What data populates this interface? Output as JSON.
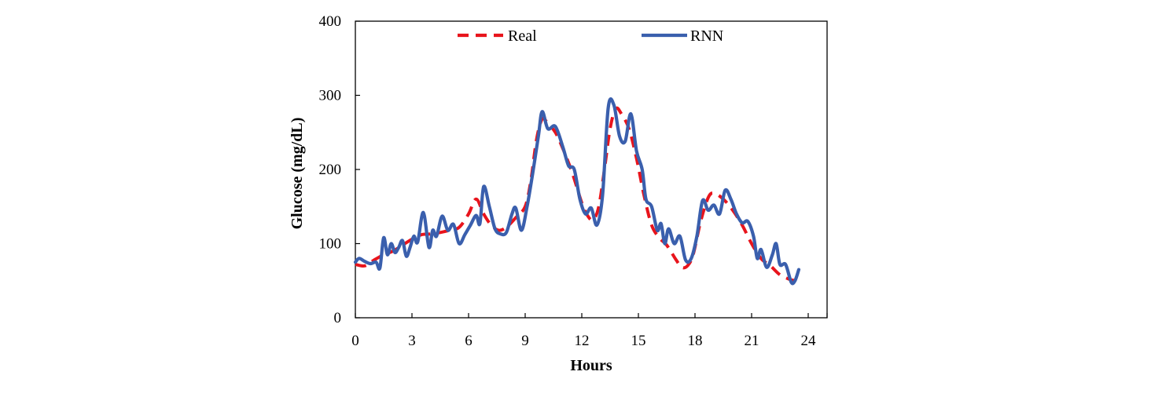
{
  "chart_data": {
    "type": "line",
    "title": "",
    "xlabel": "Hours",
    "ylabel": "Glucose (mg/dL)",
    "xlim": [
      0,
      25
    ],
    "ylim": [
      0,
      400
    ],
    "x_ticks": [
      0,
      3,
      6,
      9,
      12,
      15,
      18,
      21,
      24
    ],
    "y_ticks": [
      0,
      100,
      200,
      300,
      400
    ],
    "grid": false,
    "legend": "top, horizontal",
    "series": [
      {
        "name": "Real",
        "color": "#e8141c",
        "style": "dashed",
        "points": [
          [
            0,
            72
          ],
          [
            0.5,
            70
          ],
          [
            1,
            78
          ],
          [
            1.5,
            85
          ],
          [
            2,
            90
          ],
          [
            2.5,
            98
          ],
          [
            3,
            106
          ],
          [
            3.5,
            112
          ],
          [
            4,
            113
          ],
          [
            4.5,
            115
          ],
          [
            5,
            118
          ],
          [
            5.5,
            122
          ],
          [
            6,
            140
          ],
          [
            6.4,
            160
          ],
          [
            6.8,
            140
          ],
          [
            7.2,
            125
          ],
          [
            7.6,
            118
          ],
          [
            8,
            122
          ],
          [
            8.5,
            135
          ],
          [
            9,
            150
          ],
          [
            9.3,
            185
          ],
          [
            9.6,
            240
          ],
          [
            9.9,
            268
          ],
          [
            10.2,
            262
          ],
          [
            10.6,
            250
          ],
          [
            11,
            228
          ],
          [
            11.5,
            195
          ],
          [
            12,
            155
          ],
          [
            12.3,
            138
          ],
          [
            12.6,
            132
          ],
          [
            12.9,
            150
          ],
          [
            13.2,
            200
          ],
          [
            13.5,
            255
          ],
          [
            13.8,
            282
          ],
          [
            14.1,
            275
          ],
          [
            14.5,
            255
          ],
          [
            14.9,
            215
          ],
          [
            15.3,
            165
          ],
          [
            15.7,
            125
          ],
          [
            16.1,
            108
          ],
          [
            16.5,
            98
          ],
          [
            17,
            78
          ],
          [
            17.3,
            68
          ],
          [
            17.6,
            70
          ],
          [
            17.9,
            85
          ],
          [
            18.3,
            130
          ],
          [
            18.7,
            162
          ],
          [
            19,
            168
          ],
          [
            19.5,
            160
          ],
          [
            20,
            145
          ],
          [
            20.5,
            125
          ],
          [
            21,
            100
          ],
          [
            21.5,
            80
          ],
          [
            22,
            70
          ],
          [
            22.5,
            58
          ],
          [
            23,
            52
          ],
          [
            23.3,
            50
          ]
        ]
      },
      {
        "name": "RNN",
        "color": "#3a5fad",
        "style": "solid",
        "points": [
          [
            0,
            75
          ],
          [
            0.2,
            80
          ],
          [
            0.5,
            76
          ],
          [
            0.8,
            73
          ],
          [
            1.1,
            75
          ],
          [
            1.3,
            67
          ],
          [
            1.5,
            108
          ],
          [
            1.7,
            85
          ],
          [
            1.9,
            100
          ],
          [
            2.1,
            88
          ],
          [
            2.3,
            95
          ],
          [
            2.5,
            104
          ],
          [
            2.7,
            83
          ],
          [
            2.9,
            95
          ],
          [
            3.1,
            110
          ],
          [
            3.3,
            102
          ],
          [
            3.6,
            142
          ],
          [
            3.9,
            95
          ],
          [
            4.1,
            118
          ],
          [
            4.3,
            110
          ],
          [
            4.6,
            137
          ],
          [
            4.9,
            118
          ],
          [
            5.2,
            126
          ],
          [
            5.5,
            100
          ],
          [
            5.8,
            112
          ],
          [
            6.1,
            125
          ],
          [
            6.4,
            138
          ],
          [
            6.6,
            127
          ],
          [
            6.8,
            177
          ],
          [
            7.1,
            150
          ],
          [
            7.4,
            120
          ],
          [
            7.7,
            113
          ],
          [
            8,
            115
          ],
          [
            8.3,
            140
          ],
          [
            8.5,
            148
          ],
          [
            8.8,
            118
          ],
          [
            9.1,
            150
          ],
          [
            9.4,
            195
          ],
          [
            9.7,
            245
          ],
          [
            9.9,
            278
          ],
          [
            10.2,
            255
          ],
          [
            10.6,
            258
          ],
          [
            11,
            230
          ],
          [
            11.3,
            205
          ],
          [
            11.6,
            200
          ],
          [
            11.9,
            160
          ],
          [
            12.2,
            140
          ],
          [
            12.5,
            148
          ],
          [
            12.8,
            125
          ],
          [
            13.1,
            165
          ],
          [
            13.4,
            283
          ],
          [
            13.7,
            287
          ],
          [
            14,
            245
          ],
          [
            14.3,
            238
          ],
          [
            14.6,
            275
          ],
          [
            14.9,
            225
          ],
          [
            15.2,
            200
          ],
          [
            15.4,
            160
          ],
          [
            15.7,
            150
          ],
          [
            16,
            118
          ],
          [
            16.2,
            127
          ],
          [
            16.4,
            100
          ],
          [
            16.6,
            120
          ],
          [
            16.9,
            100
          ],
          [
            17.2,
            110
          ],
          [
            17.5,
            78
          ],
          [
            17.8,
            80
          ],
          [
            18.1,
            110
          ],
          [
            18.4,
            158
          ],
          [
            18.7,
            145
          ],
          [
            19,
            152
          ],
          [
            19.3,
            140
          ],
          [
            19.6,
            172
          ],
          [
            19.9,
            160
          ],
          [
            20.2,
            140
          ],
          [
            20.5,
            128
          ],
          [
            20.8,
            130
          ],
          [
            21.1,
            110
          ],
          [
            21.3,
            80
          ],
          [
            21.5,
            92
          ],
          [
            21.8,
            68
          ],
          [
            22.1,
            85
          ],
          [
            22.3,
            100
          ],
          [
            22.5,
            72
          ],
          [
            22.8,
            72
          ],
          [
            23.1,
            48
          ],
          [
            23.3,
            50
          ],
          [
            23.5,
            65
          ]
        ]
      }
    ]
  }
}
